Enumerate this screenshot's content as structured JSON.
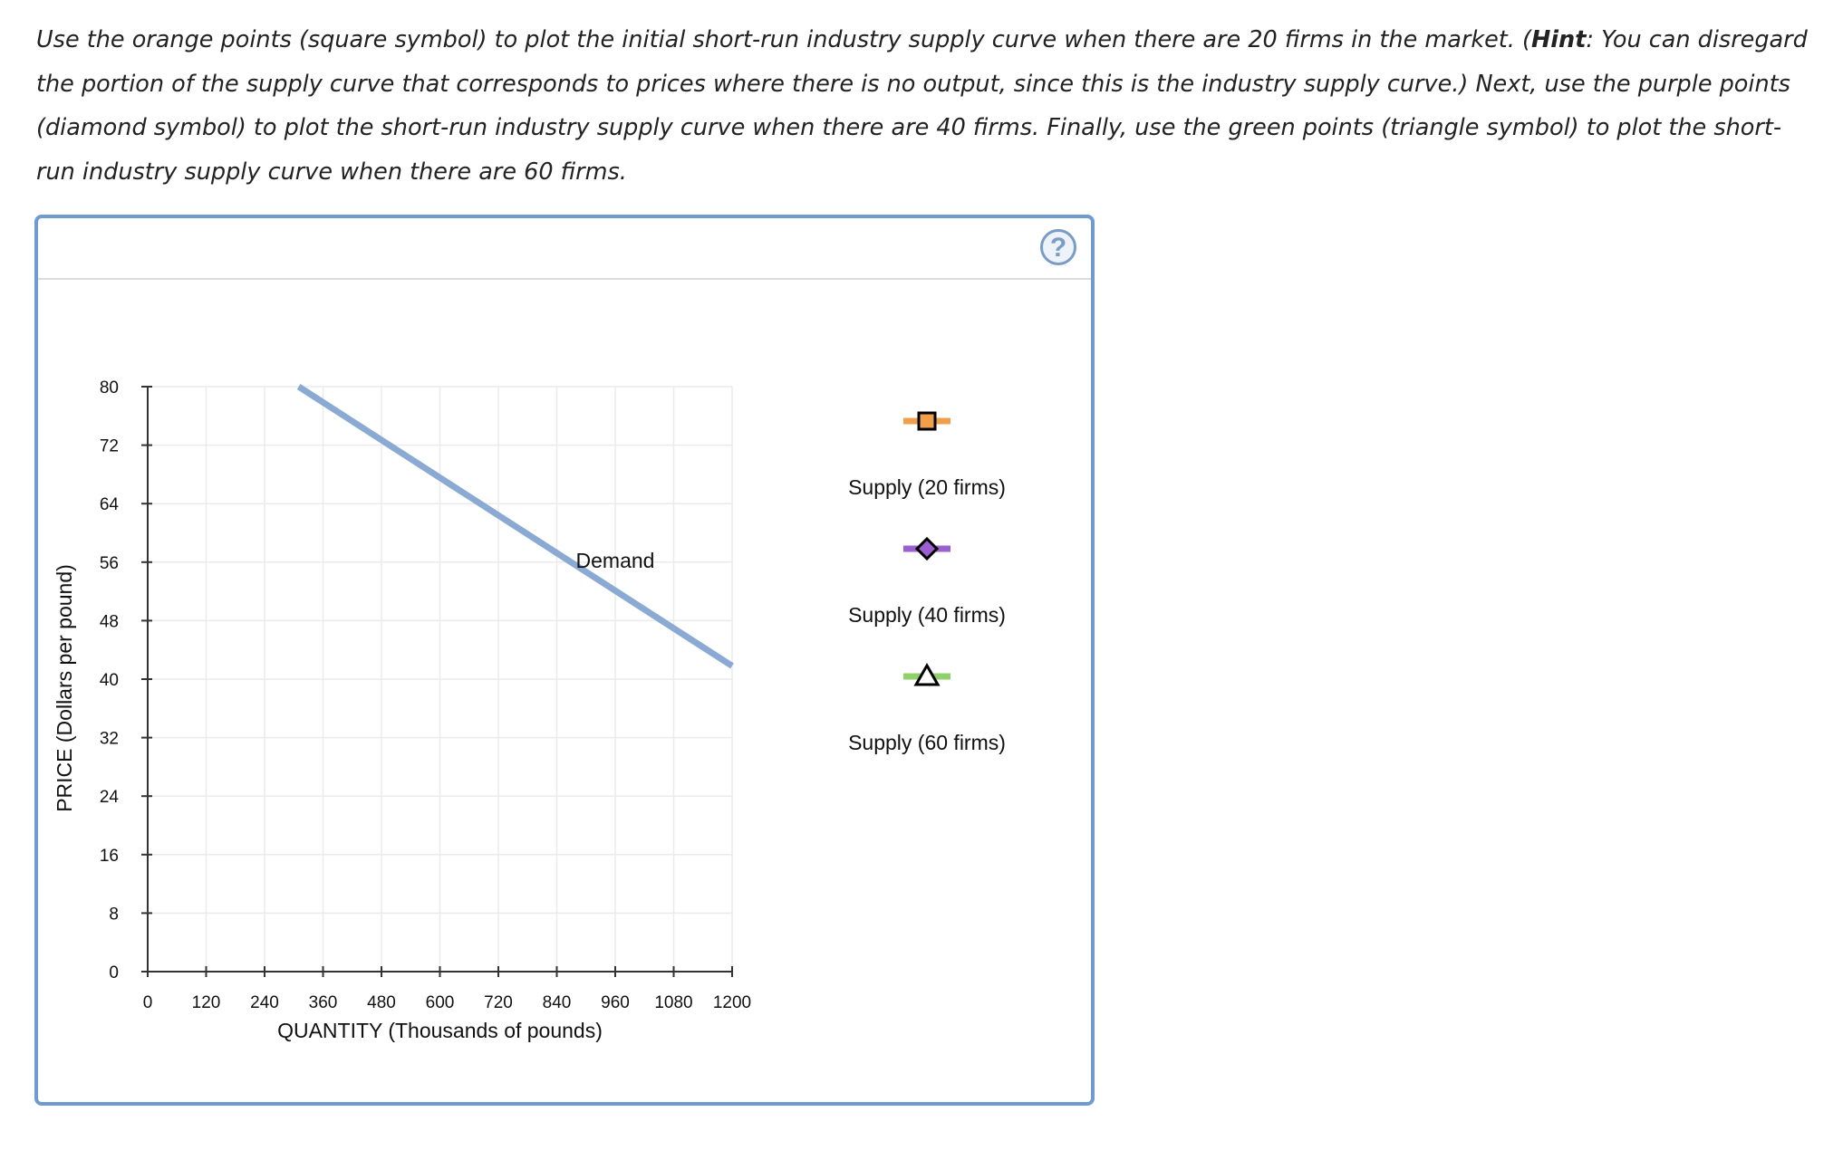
{
  "instructions": {
    "part1": "Use the orange points (square symbol) to plot the initial short-run industry supply curve when there are 20 firms in the market. (",
    "hint_label": "Hint",
    "part2": ": You can disregard the portion of the supply curve that corresponds to prices where there is no output, since this is the industry supply curve.) Next, use the purple points (diamond symbol) to plot the short-run industry supply curve when there are 40 firms. Finally, use the green points (triangle symbol) to plot the short-run industry supply curve when there are 60 firms."
  },
  "help_button": {
    "label": "?",
    "icon": "help-icon"
  },
  "chart_data": {
    "type": "line",
    "xlabel": "QUANTITY (Thousands of pounds)",
    "ylabel": "PRICE (Dollars per pound)",
    "xlim": [
      0,
      1200
    ],
    "ylim": [
      0,
      80
    ],
    "x_ticks": [
      0,
      120,
      240,
      360,
      480,
      600,
      720,
      840,
      960,
      1080,
      1200
    ],
    "y_ticks": [
      0,
      8,
      16,
      24,
      32,
      40,
      48,
      56,
      64,
      72,
      80
    ],
    "x_tick_labels": [
      "0",
      "120",
      "240",
      "360",
      "480",
      "600",
      "720",
      "840",
      "960",
      "1080",
      "1200"
    ],
    "y_tick_labels": [
      "0",
      "8",
      "16",
      "24",
      "32",
      "40",
      "48",
      "56",
      "64",
      "72",
      "80"
    ],
    "grid": true,
    "series": [
      {
        "name": "Demand",
        "color": "#8aaad4",
        "points": [
          [
            310,
            80
          ],
          [
            1200,
            41.8
          ]
        ]
      }
    ],
    "annotations": [
      {
        "text": "Demand",
        "x": 960,
        "y": 56
      }
    ],
    "legend_position": "right",
    "legend": [
      {
        "label": "Supply (20 firms)",
        "marker": "square",
        "color": "#f0a04b",
        "line_color": "#f0a04b"
      },
      {
        "label": "Supply (40 firms)",
        "marker": "diamond",
        "color": "#9b5fd0",
        "line_color": "#9b5fd0"
      },
      {
        "label": "Supply (60 firms)",
        "marker": "triangle",
        "color": "#ffffff",
        "line_color": "#8fd06a"
      }
    ]
  }
}
